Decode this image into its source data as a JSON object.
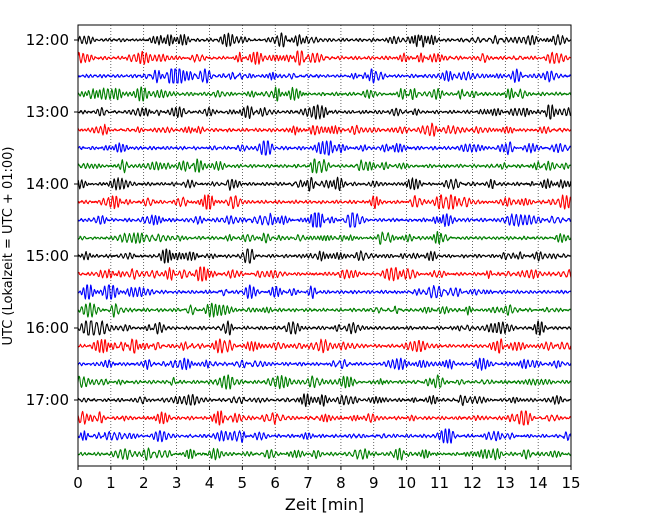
{
  "chart_data": {
    "type": "line",
    "title": "",
    "xlabel": "Zeit  [min]",
    "ylabel": "UTC (Lokalzeit = UTC + 01:00)",
    "xlim": [
      0,
      15
    ],
    "x_ticks": [
      0,
      1,
      2,
      3,
      4,
      5,
      6,
      7,
      8,
      9,
      10,
      11,
      12,
      13,
      14,
      15
    ],
    "grid": "vertical dotted lines at each minute",
    "y_ticks": [
      "12:00",
      "13:00",
      "14:00",
      "15:00",
      "16:00",
      "17:00"
    ],
    "trace_interval_minutes": 15,
    "first_trace": "12:00",
    "trace_count": 24,
    "trace_color_cycle": [
      "#000000",
      "#ff0000",
      "#0000ff",
      "#007f00"
    ],
    "series": [
      {
        "start": "12:00",
        "color": "#000000"
      },
      {
        "start": "12:15",
        "color": "#ff0000"
      },
      {
        "start": "12:30",
        "color": "#0000ff"
      },
      {
        "start": "12:45",
        "color": "#007f00"
      },
      {
        "start": "13:00",
        "color": "#000000"
      },
      {
        "start": "13:15",
        "color": "#ff0000"
      },
      {
        "start": "13:30",
        "color": "#0000ff"
      },
      {
        "start": "13:45",
        "color": "#007f00"
      },
      {
        "start": "14:00",
        "color": "#000000"
      },
      {
        "start": "14:15",
        "color": "#ff0000"
      },
      {
        "start": "14:30",
        "color": "#0000ff"
      },
      {
        "start": "14:45",
        "color": "#007f00"
      },
      {
        "start": "15:00",
        "color": "#000000"
      },
      {
        "start": "15:15",
        "color": "#ff0000"
      },
      {
        "start": "15:30",
        "color": "#0000ff"
      },
      {
        "start": "15:45",
        "color": "#007f00"
      },
      {
        "start": "16:00",
        "color": "#000000"
      },
      {
        "start": "16:15",
        "color": "#ff0000"
      },
      {
        "start": "16:30",
        "color": "#0000ff"
      },
      {
        "start": "16:45",
        "color": "#007f00"
      },
      {
        "start": "17:00",
        "color": "#000000"
      },
      {
        "start": "17:15",
        "color": "#ff0000"
      },
      {
        "start": "17:30",
        "color": "#0000ff"
      },
      {
        "start": "17:45",
        "color": "#007f00"
      }
    ]
  }
}
